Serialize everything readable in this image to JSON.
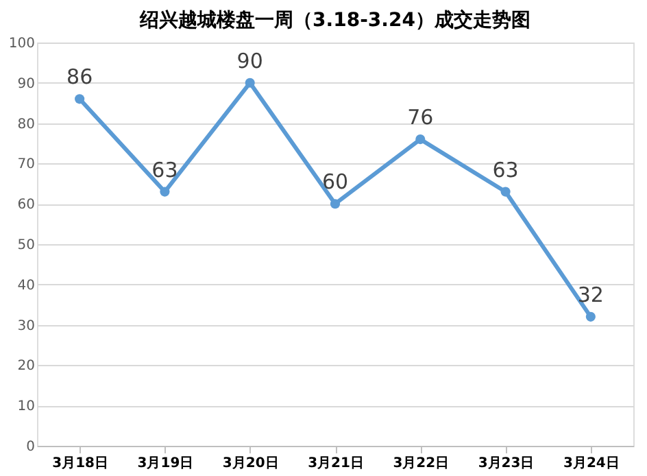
{
  "chart_data": {
    "type": "line",
    "title": "绍兴越城楼盘一周（3.18-3.24）成交走势图",
    "categories": [
      "3月18日",
      "3月19日",
      "3月20日",
      "3月21日",
      "3月22日",
      "3月23日",
      "3月24日"
    ],
    "series": [
      {
        "color": "#5b9bd5",
        "values": [
          86,
          63,
          90,
          60,
          76,
          63,
          32
        ]
      }
    ],
    "ylim": [
      0,
      100
    ],
    "yticks": [
      0,
      10,
      20,
      30,
      40,
      50,
      60,
      70,
      80,
      90,
      100
    ],
    "grid": "y",
    "marker": "circle",
    "line_style": "solid",
    "data_labels": true
  }
}
